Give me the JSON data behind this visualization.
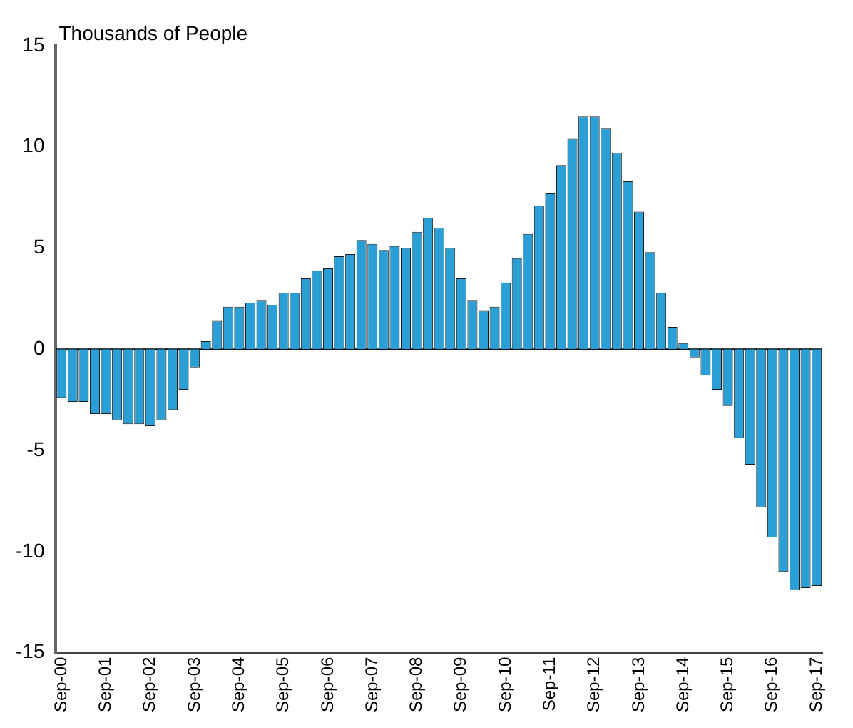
{
  "chart_data": {
    "type": "bar",
    "ylabel": "Thousands of People",
    "categories": [
      "Sep-00",
      null,
      null,
      null,
      "Sep-01",
      null,
      null,
      null,
      "Sep-02",
      null,
      null,
      null,
      "Sep-03",
      null,
      null,
      null,
      "Sep-04",
      null,
      null,
      null,
      "Sep-05",
      null,
      null,
      null,
      "Sep-06",
      null,
      null,
      null,
      "Sep-07",
      null,
      null,
      null,
      "Sep-08",
      null,
      null,
      null,
      "Sep-09",
      null,
      null,
      null,
      "Sep-10",
      null,
      null,
      null,
      "Sep-11",
      null,
      null,
      null,
      "Sep-12",
      null,
      null,
      null,
      "Sep-13",
      null,
      null,
      null,
      "Sep-14",
      null,
      null,
      null,
      "Sep-15",
      null,
      null,
      null,
      "Sep-16",
      null,
      null,
      null,
      "Sep-17"
    ],
    "values": [
      -2.4,
      -2.6,
      -2.6,
      -3.2,
      -3.2,
      -3.5,
      -3.7,
      -3.7,
      -3.8,
      -3.5,
      -3.0,
      -2.0,
      -0.9,
      0.4,
      1.4,
      2.1,
      2.1,
      2.3,
      2.4,
      2.2,
      2.8,
      2.8,
      3.5,
      3.9,
      4.0,
      4.6,
      4.7,
      5.4,
      5.2,
      4.9,
      5.1,
      5.0,
      5.8,
      6.5,
      6.0,
      5.0,
      3.5,
      2.4,
      1.9,
      2.1,
      3.3,
      4.5,
      5.7,
      7.1,
      7.7,
      9.1,
      10.4,
      11.5,
      11.5,
      10.9,
      9.7,
      8.3,
      6.8,
      4.8,
      2.8,
      1.1,
      0.3,
      -0.4,
      -1.3,
      -2.0,
      -2.8,
      -4.4,
      -5.7,
      -7.8,
      -9.3,
      -11.0,
      -11.9,
      -11.8,
      -11.7
    ],
    "color": "#2a9fd6",
    "ylim": [
      -15,
      15
    ],
    "yticks": [
      -15,
      -10,
      -5,
      0,
      5,
      10,
      15
    ],
    "grid": false,
    "legend": false,
    "ref_lines": [
      {
        "axis": "y",
        "value": 0,
        "color": "#000000"
      }
    ]
  }
}
